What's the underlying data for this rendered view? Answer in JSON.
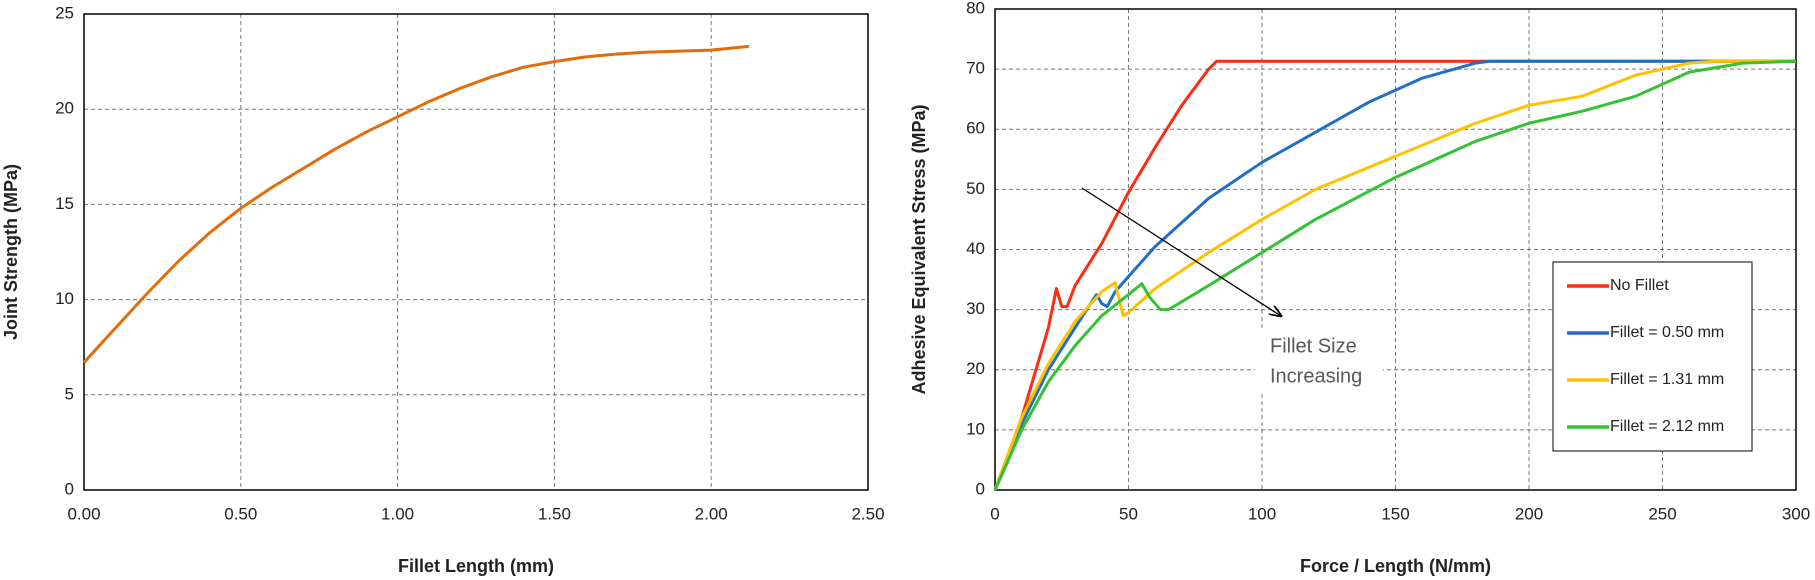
{
  "chart_data": [
    {
      "type": "line",
      "xlabel": "Fillet Length  (mm)",
      "ylabel": "Joint Strength  (MPa)",
      "color": "#e36c0a",
      "x": [
        0,
        0.1,
        0.2,
        0.3,
        0.4,
        0.5,
        0.6,
        0.7,
        0.8,
        0.9,
        1.0,
        1.1,
        1.2,
        1.3,
        1.4,
        1.5,
        1.6,
        1.7,
        1.8,
        1.9,
        2.0,
        2.12
      ],
      "values": [
        6.7,
        8.5,
        10.3,
        12,
        13.5,
        14.8,
        15.9,
        16.9,
        17.9,
        18.8,
        19.6,
        20.4,
        21.1,
        21.7,
        22.2,
        22.5,
        22.75,
        22.9,
        23.0,
        23.05,
        23.1,
        23.3
      ],
      "xlim": [
        0,
        2.5
      ],
      "ylim": [
        0,
        25
      ],
      "xticks": [
        {
          "value": 0,
          "label": "0.00"
        },
        {
          "value": 0.5,
          "label": "0.50"
        },
        {
          "value": 1,
          "label": "1.00"
        },
        {
          "value": 1.5,
          "label": "1.50"
        },
        {
          "value": 2,
          "label": "2.00"
        },
        {
          "value": 2.5,
          "label": "2.50"
        }
      ],
      "yticks": [
        0,
        5,
        10,
        15,
        20,
        25
      ],
      "grid": true
    },
    {
      "type": "line",
      "xlabel": "Force / Length   (N/mm)",
      "ylabel": "Adhesive Equivalent Stress  (MPa)",
      "annotation": [
        "Fillet Size",
        "Increasing"
      ],
      "legend": "right",
      "xlim": [
        0,
        300
      ],
      "ylim": [
        0,
        80
      ],
      "xticks": [
        0,
        50,
        100,
        150,
        200,
        250,
        300
      ],
      "yticks": [
        0,
        10,
        20,
        30,
        40,
        50,
        60,
        70,
        80
      ],
      "grid": true,
      "series": [
        {
          "name": "No Fillet",
          "color": "#ff2a12",
          "x": [
            0,
            10,
            20,
            23,
            25,
            27,
            30,
            40,
            50,
            60,
            70,
            80,
            83,
            100,
            300
          ],
          "values": [
            0,
            12,
            27,
            33.5,
            30.5,
            30.5,
            34,
            41,
            49.5,
            57,
            64,
            70,
            71.3,
            71.3,
            71.3
          ]
        },
        {
          "name": "Fillet = 0.50 mm",
          "color": "#1f6fc6",
          "x": [
            0,
            5,
            10,
            20,
            30,
            38,
            40,
            42,
            45,
            50,
            60,
            80,
            100,
            120,
            140,
            160,
            180,
            185,
            300
          ],
          "values": [
            0,
            5,
            11,
            20,
            27,
            32.5,
            31,
            30.5,
            33,
            35.5,
            40.5,
            48.5,
            54.5,
            59.5,
            64.5,
            68.5,
            71,
            71.3,
            71.3
          ]
        },
        {
          "name": "Fillet = 1.31 mm",
          "color": "#ffc000",
          "x": [
            0,
            10,
            20,
            30,
            40,
            45,
            48,
            50,
            60,
            80,
            100,
            120,
            150,
            180,
            200,
            220,
            240,
            260,
            270,
            300
          ],
          "values": [
            0,
            12,
            21,
            28,
            33,
            34.5,
            29,
            29.5,
            33.5,
            39.5,
            45,
            50,
            55.5,
            61,
            64,
            65.5,
            69,
            71,
            71.3,
            71.3
          ]
        },
        {
          "name": "Fillet = 2.12 mm",
          "color": "#33c233",
          "x": [
            0,
            10,
            20,
            30,
            40,
            50,
            55,
            58,
            62,
            65,
            80,
            100,
            120,
            150,
            180,
            200,
            220,
            240,
            260,
            280,
            300
          ],
          "values": [
            0,
            10,
            18,
            24,
            29,
            32.5,
            34.3,
            32,
            30,
            30,
            34,
            39.5,
            45,
            52,
            58,
            61,
            63,
            65.5,
            69.5,
            71,
            71.3
          ]
        }
      ]
    }
  ]
}
